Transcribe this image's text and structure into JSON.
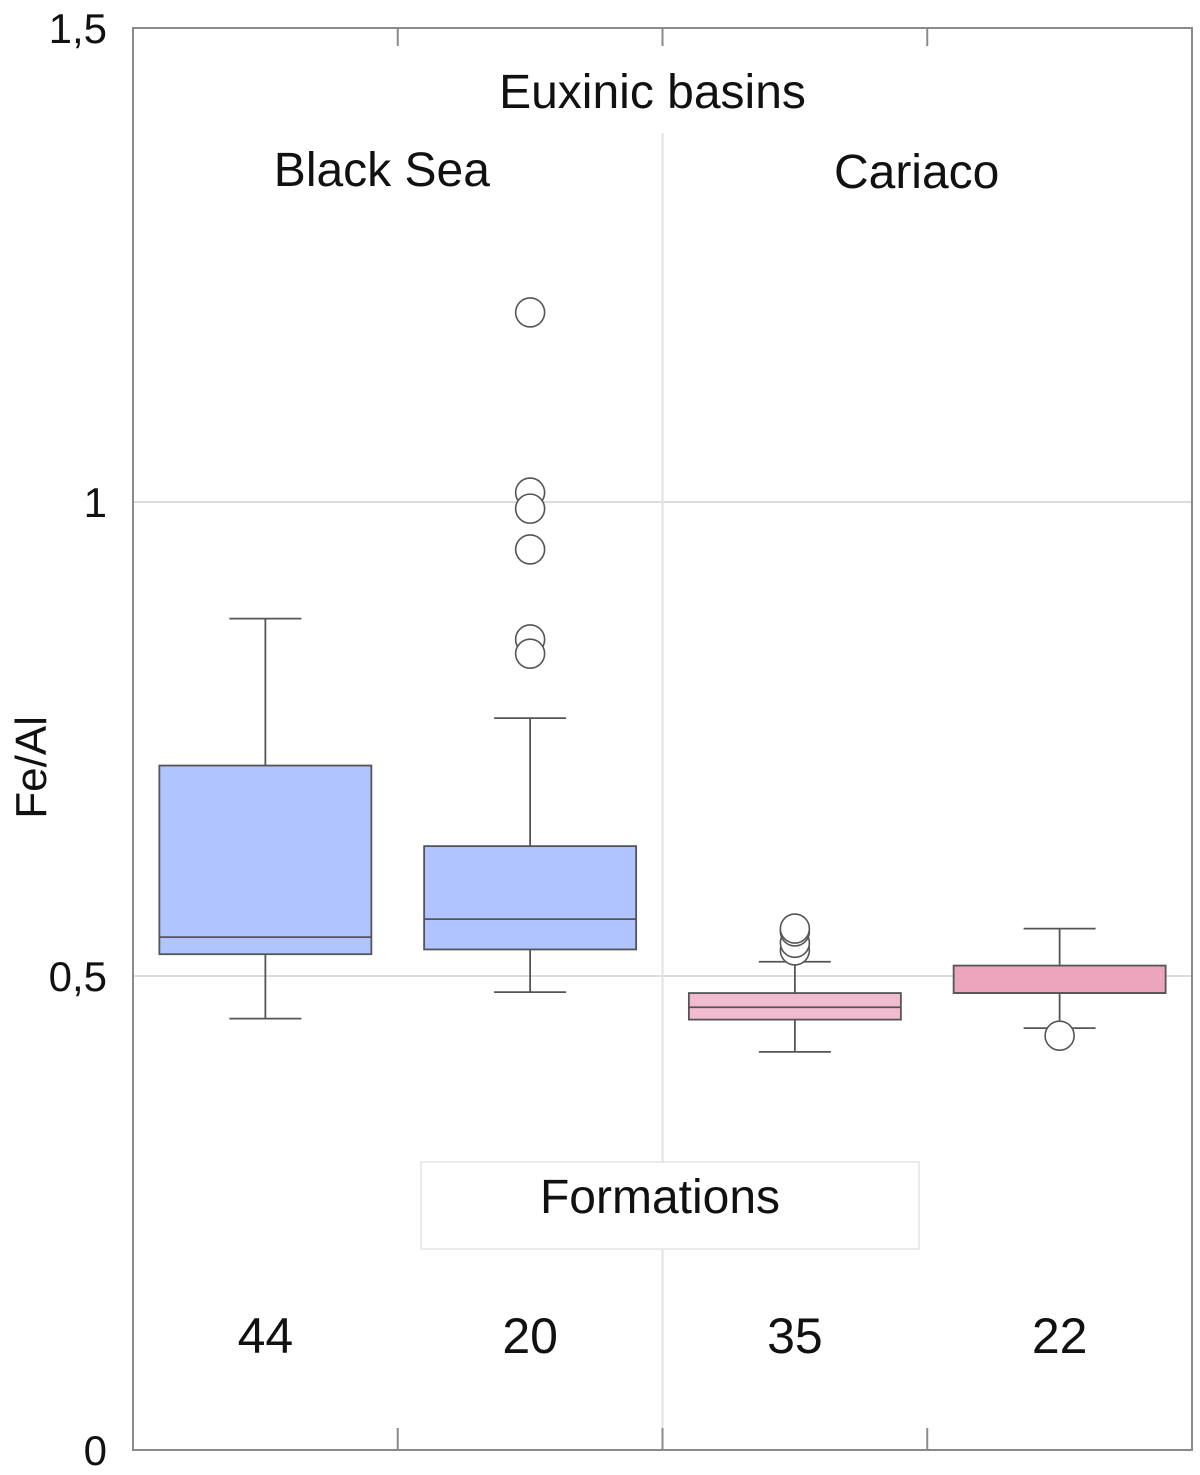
{
  "chart_data": {
    "type": "box",
    "title": "",
    "ylabel": "Fe/Al",
    "xlabel": "",
    "ylim": [
      0,
      1.5
    ],
    "yticks": [
      {
        "value": 0,
        "label": "0"
      },
      {
        "value": 0.5,
        "label": "0,5"
      },
      {
        "value": 1,
        "label": "1"
      },
      {
        "value": 1.5,
        "label": "1,5"
      }
    ],
    "grid": true,
    "group_header": "Euxinic basins",
    "groups": [
      {
        "name": "Black Sea"
      },
      {
        "name": "Cariaco"
      }
    ],
    "footer_label": "Formations",
    "series": [
      {
        "group": "Black Sea",
        "n_label": "44",
        "color": "#b0c4ff",
        "whisker_low": 0.455,
        "q1": 0.523,
        "median": 0.541,
        "q3": 0.722,
        "whisker_high": 0.877,
        "outliers": []
      },
      {
        "group": "Black Sea",
        "n_label": "20",
        "color": "#b0c4ff",
        "whisker_low": 0.483,
        "q1": 0.528,
        "median": 0.56,
        "q3": 0.637,
        "whisker_high": 0.772,
        "outliers": [
          1.2,
          1.01,
          0.993,
          0.95,
          0.855,
          0.84
        ]
      },
      {
        "group": "Cariaco",
        "n_label": "35",
        "color": "#f2bcd0",
        "whisker_low": 0.42,
        "q1": 0.454,
        "median": 0.467,
        "q3": 0.482,
        "whisker_high": 0.515,
        "outliers": [
          0.527,
          0.535,
          0.547,
          0.55
        ]
      },
      {
        "group": "Cariaco",
        "n_label": "22",
        "color": "#eca5bd",
        "whisker_low": 0.445,
        "q1": 0.482,
        "median": 0.482,
        "q3": 0.511,
        "whisker_high": 0.55,
        "outliers": [
          0.437
        ]
      }
    ]
  }
}
